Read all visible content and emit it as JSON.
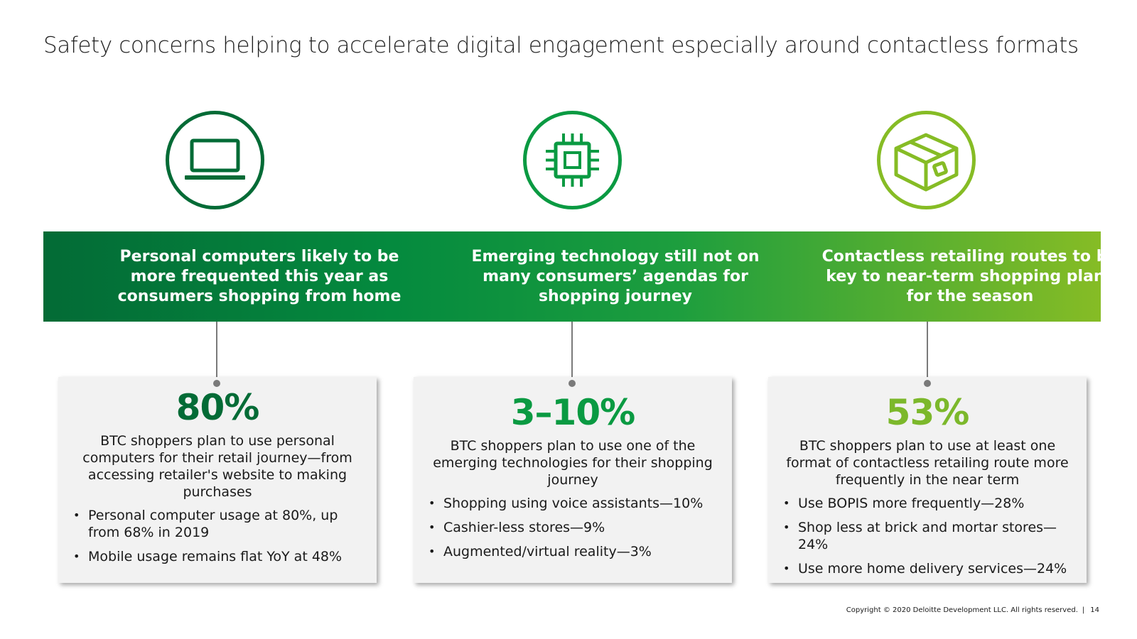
{
  "title": "Safety concerns helping to accelerate digital engagement especially around contactless formats",
  "colors": {
    "dark_green": "#036b36",
    "mid_green": "#0a9a42",
    "light_green": "#86bc25",
    "card_bg": "#f2f2f2"
  },
  "columns": [
    {
      "icon": "laptop-icon",
      "heading": "Personal computers likely to be more frequented this year as consumers shopping from home",
      "stat": "80%",
      "description": "BTC shoppers plan to use personal computers for their retail journey—from accessing retailer's website to making purchases",
      "bullets": [
        "Personal computer usage at 80%, up from 68% in 2019",
        "Mobile usage remains flat YoY at 48%"
      ]
    },
    {
      "icon": "microchip-icon",
      "heading": "Emerging technology still not on many consumers’ agendas for shopping journey",
      "stat": "3–10%",
      "description": "BTC shoppers plan to use one of the emerging technologies for their shopping journey",
      "bullets": [
        "Shopping using voice assistants—10%",
        "Cashier-less stores—9%",
        "Augmented/virtual reality—3%"
      ]
    },
    {
      "icon": "package-box-icon",
      "heading": "Contactless retailing routes to be key to near-term shopping plans for the season",
      "stat": "53%",
      "description": "BTC shoppers plan to use at least one format of contactless retailing route more frequently in the near term",
      "bullets": [
        "Use BOPIS more frequently—28%",
        "Shop less at brick and mortar stores—24%",
        "Use more home delivery services—24%"
      ]
    }
  ],
  "footer": {
    "copyright": "Copyright © 2020 Deloitte Development LLC. All rights reserved.",
    "separator": "|",
    "page_number": "14"
  }
}
